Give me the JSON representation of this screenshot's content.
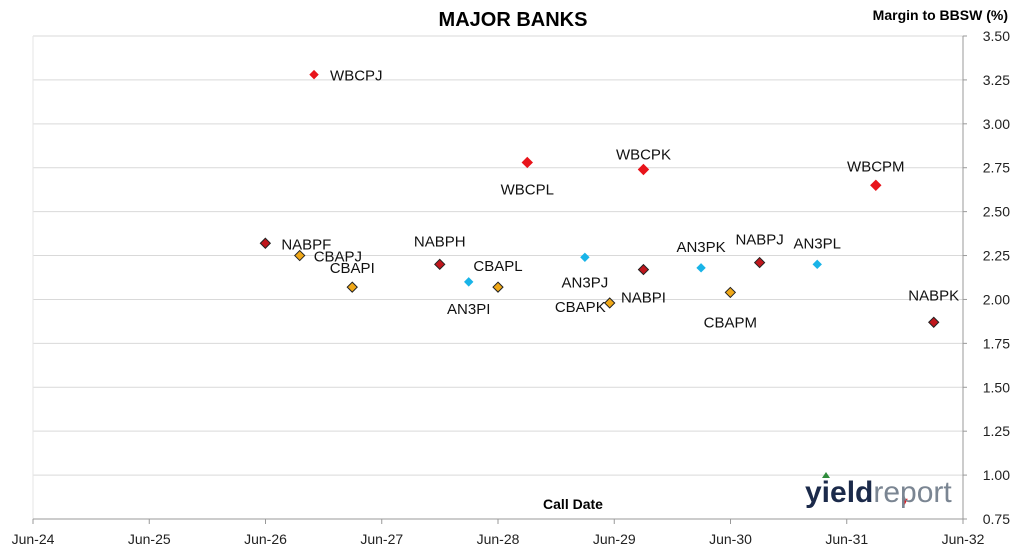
{
  "chart_data": {
    "type": "scatter",
    "title": "MAJOR BANKS",
    "xlabel": "Call Date",
    "ylabel": "Margin to BBSW (%)",
    "x_ticks": [
      "Jun-24",
      "Jun-25",
      "Jun-26",
      "Jun-27",
      "Jun-28",
      "Jun-29",
      "Jun-30",
      "Jun-31",
      "Jun-32"
    ],
    "y_ticks": [
      "0.75",
      "1.00",
      "1.25",
      "1.50",
      "1.75",
      "2.00",
      "2.25",
      "2.50",
      "2.75",
      "3.00",
      "3.25",
      "3.50"
    ],
    "xlim": [
      "2024-06",
      "2032-06"
    ],
    "ylim": [
      0.75,
      3.5
    ],
    "grid": "horizontal",
    "colors": {
      "red": "#e8141b",
      "darkred": "#c0161c",
      "gold": "#f0a818",
      "cyan": "#19b4e8",
      "grid": "#d9d9d9"
    },
    "points": [
      {
        "label": "WBCPJ",
        "x": "2026-11-15",
        "y": 3.28,
        "color": "red"
      },
      {
        "label": "WBCPL",
        "x": "2028-09-15",
        "y": 2.78,
        "color": "red"
      },
      {
        "label": "WBCPK",
        "x": "2029-09-15",
        "y": 2.74,
        "color": "red"
      },
      {
        "label": "WBCPM",
        "x": "2031-09-15",
        "y": 2.65,
        "color": "red"
      },
      {
        "label": "NABPF",
        "x": "2026-06-15",
        "y": 2.32,
        "color": "darkred"
      },
      {
        "label": "CBAPJ",
        "x": "2026-10-01",
        "y": 2.25,
        "color": "gold"
      },
      {
        "label": "CBAPI",
        "x": "2027-03-15",
        "y": 2.07,
        "color": "gold"
      },
      {
        "label": "NABPH",
        "x": "2027-12-15",
        "y": 2.2,
        "color": "darkred"
      },
      {
        "label": "AN3PI",
        "x": "2028-03-15",
        "y": 2.1,
        "color": "cyan"
      },
      {
        "label": "CBAPL",
        "x": "2028-06-15",
        "y": 2.07,
        "color": "gold"
      },
      {
        "label": "AN3PJ",
        "x": "2029-03-15",
        "y": 2.24,
        "color": "cyan"
      },
      {
        "label": "CBAPK",
        "x": "2029-06-01",
        "y": 1.98,
        "color": "gold"
      },
      {
        "label": "NABPI",
        "x": "2029-09-15",
        "y": 2.17,
        "color": "darkred"
      },
      {
        "label": "AN3PK",
        "x": "2030-03-15",
        "y": 2.18,
        "color": "cyan"
      },
      {
        "label": "CBAPM",
        "x": "2030-06-15",
        "y": 2.04,
        "color": "gold"
      },
      {
        "label": "NABPJ",
        "x": "2030-09-15",
        "y": 2.21,
        "color": "darkred"
      },
      {
        "label": "AN3PL",
        "x": "2031-03-15",
        "y": 2.2,
        "color": "cyan"
      },
      {
        "label": "NABPK",
        "x": "2032-03-15",
        "y": 1.87,
        "color": "darkred"
      }
    ],
    "extra_marks": [
      {
        "x": "2031-12-15",
        "y": 0.78,
        "color": "red",
        "shape": "triangle-down"
      }
    ]
  },
  "logo": {
    "part1": "yield",
    "part2": "report"
  }
}
